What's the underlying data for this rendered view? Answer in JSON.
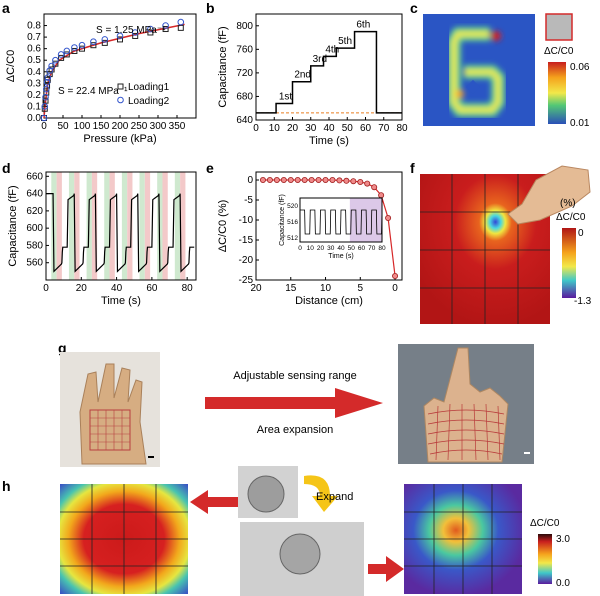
{
  "panels": {
    "a": {
      "label": "a"
    },
    "b": {
      "label": "b"
    },
    "c": {
      "label": "c"
    },
    "d": {
      "label": "d"
    },
    "e": {
      "label": "e"
    },
    "f": {
      "label": "f"
    },
    "g": {
      "label": "g"
    },
    "h": {
      "label": "h"
    }
  },
  "chart_data": [
    {
      "id": "a",
      "type": "scatter",
      "xlabel": "Pressure (kPa)",
      "ylabel": "ΔC/C0",
      "xlim": [
        0,
        400
      ],
      "ylim": [
        0,
        0.9
      ],
      "xticks": [
        0,
        50,
        100,
        150,
        200,
        250,
        300,
        350
      ],
      "yticks": [
        0.0,
        0.1,
        0.2,
        0.3,
        0.4,
        0.5,
        0.6,
        0.7,
        0.8
      ],
      "annotations": [
        "S = 1.25 MPa⁻¹",
        "S = 22.4 MPa⁻¹"
      ],
      "legend": [
        "Loading1",
        "Loading2"
      ],
      "legend_position": "bottom-right",
      "series": [
        {
          "name": "Loading1",
          "marker": "square",
          "color": "#222222",
          "x": [
            0,
            2,
            4,
            6,
            8,
            10,
            15,
            20,
            30,
            45,
            60,
            80,
            100,
            130,
            160,
            200,
            240,
            280,
            320,
            360
          ],
          "y": [
            0.0,
            0.08,
            0.15,
            0.22,
            0.28,
            0.33,
            0.38,
            0.42,
            0.47,
            0.52,
            0.55,
            0.58,
            0.6,
            0.63,
            0.65,
            0.68,
            0.71,
            0.74,
            0.77,
            0.78
          ]
        },
        {
          "name": "Loading2",
          "marker": "circle",
          "color": "#3355cc",
          "x": [
            0,
            2,
            4,
            6,
            8,
            10,
            15,
            20,
            30,
            45,
            60,
            80,
            100,
            130,
            160,
            200,
            240,
            280,
            320,
            360
          ],
          "y": [
            0.0,
            0.1,
            0.18,
            0.25,
            0.31,
            0.35,
            0.41,
            0.45,
            0.5,
            0.55,
            0.58,
            0.61,
            0.63,
            0.66,
            0.68,
            0.71,
            0.74,
            0.77,
            0.8,
            0.83
          ]
        }
      ],
      "fit_color": "#d62728"
    },
    {
      "id": "b",
      "type": "line",
      "xlabel": "Time (s)",
      "ylabel": "Capacitance (fF)",
      "xlim": [
        0,
        80
      ],
      "ylim": [
        640,
        820
      ],
      "xticks": [
        0,
        10,
        20,
        30,
        40,
        50,
        60,
        70,
        80
      ],
      "yticks": [
        640,
        680,
        720,
        760,
        800
      ],
      "step_labels": [
        "1st",
        "2nd",
        "3rd",
        "4th",
        "5th",
        "6th"
      ],
      "series": [
        {
          "name": "",
          "color": "#000000",
          "x": [
            0,
            11,
            11,
            20,
            20,
            30,
            30,
            37,
            37,
            44,
            44,
            54,
            54,
            66,
            66,
            80
          ],
          "y": [
            652,
            652,
            668,
            668,
            705,
            705,
            732,
            732,
            748,
            748,
            762,
            762,
            790,
            790,
            652,
            652
          ]
        }
      ],
      "baseline": 652,
      "baseline_color": "#e67e22"
    },
    {
      "id": "d",
      "type": "line",
      "xlabel": "Time (s)",
      "ylabel": "Capacitance (fF)",
      "xlim": [
        0,
        85
      ],
      "ylim": [
        540,
        665
      ],
      "xticks": [
        0,
        20,
        40,
        60,
        80
      ],
      "yticks": [
        560,
        580,
        600,
        620,
        640,
        660
      ],
      "bands": [
        [
          3,
          6,
          "g"
        ],
        [
          6,
          9,
          "r"
        ],
        [
          13,
          16,
          "g"
        ],
        [
          16,
          19,
          "r"
        ],
        [
          23,
          26,
          "g"
        ],
        [
          26,
          29,
          "r"
        ],
        [
          33,
          36,
          "g"
        ],
        [
          36,
          39,
          "r"
        ],
        [
          43,
          46,
          "g"
        ],
        [
          46,
          49,
          "r"
        ],
        [
          53,
          56,
          "g"
        ],
        [
          56,
          59,
          "r"
        ],
        [
          63,
          66,
          "g"
        ],
        [
          66,
          69,
          "r"
        ],
        [
          73,
          76,
          "g"
        ],
        [
          76,
          79,
          "r"
        ]
      ],
      "period": 12,
      "phase": 4
    },
    {
      "id": "e",
      "type": "line",
      "xlabel": "Distance (cm)",
      "ylabel": "ΔC/C0 (%)",
      "xlim": [
        20,
        -1
      ],
      "ylim": [
        -25,
        2
      ],
      "xticks": [
        20,
        15,
        10,
        5,
        0
      ],
      "yticks": [
        0,
        -5,
        -10,
        -15,
        -20,
        -25
      ],
      "series": [
        {
          "name": "",
          "color": "#d62728",
          "x": [
            19,
            18,
            17,
            16,
            15,
            14,
            13,
            12,
            11,
            10,
            9,
            8,
            7,
            6,
            5,
            4,
            3,
            2,
            1,
            0
          ],
          "y": [
            0,
            0,
            0,
            0,
            0,
            0,
            0,
            0,
            0,
            0,
            0,
            -0.1,
            -0.2,
            -0.3,
            -0.5,
            -0.9,
            -1.8,
            -3.8,
            -9.5,
            -24
          ]
        }
      ],
      "inset": {
        "xlabel": "Time (s)",
        "ylabel": "Capacitance (fF)",
        "xticks": [
          0,
          10,
          20,
          30,
          40,
          50,
          60,
          70,
          80
        ],
        "yticks": [
          512,
          516,
          520
        ],
        "ylim": [
          511,
          522
        ],
        "xlim": [
          0,
          80
        ]
      }
    }
  ],
  "colorbars": {
    "c": {
      "label": "ΔC/C0",
      "max": "0.06",
      "min": "0.01"
    },
    "f": {
      "unit": "(%)",
      "label": "ΔC/C0",
      "max": "0",
      "min": "-1.3"
    },
    "h": {
      "label": "ΔC/C0",
      "max": "3.0",
      "min": "0.0"
    }
  },
  "g_text": {
    "top": "Adjustable sensing range",
    "bottom": "Area expansion"
  },
  "h_text": {
    "expand": "Expand"
  },
  "colors": {
    "arrow": "#d42a2a",
    "expand_arrow": "#f5c518"
  }
}
